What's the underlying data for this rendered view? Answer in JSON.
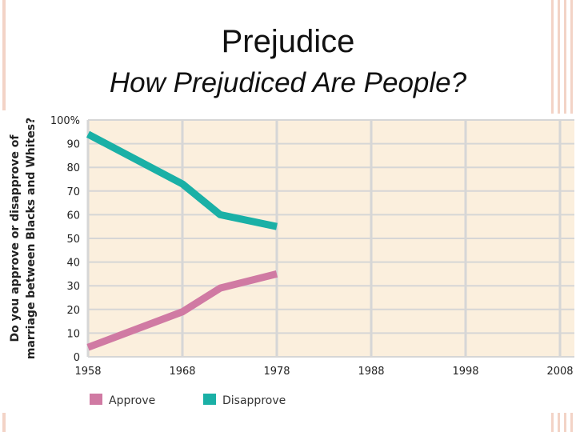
{
  "slide": {
    "title": "Prejudice",
    "subtitle": "How Prejudiced Are People?"
  },
  "chart_data": {
    "type": "line",
    "title": "",
    "xlabel": "",
    "ylabel_line1": "Do you approve or disapprove of",
    "ylabel_line2": "marriage between Blacks and Whites?",
    "x_ticks": [
      "1958",
      "1968",
      "1978",
      "1988",
      "1998",
      "2008"
    ],
    "y_ticks": [
      "0",
      "10",
      "20",
      "30",
      "40",
      "50",
      "60",
      "70",
      "80",
      "90",
      "100%"
    ],
    "xlim": [
      1958,
      2008
    ],
    "ylim": [
      0,
      100
    ],
    "grid": true,
    "legend_position": "bottom-left",
    "plot_background": "#fbefdd",
    "grid_color": "#d6d6d6",
    "series": [
      {
        "name": "Approve",
        "color": "#d07aa3",
        "x": [
          1958,
          1968,
          1972,
          1978
        ],
        "y": [
          4,
          19,
          29,
          35
        ]
      },
      {
        "name": "Disapprove",
        "color": "#1ab0a6",
        "x": [
          1958,
          1968,
          1972,
          1978
        ],
        "y": [
          94,
          73,
          60,
          55
        ]
      }
    ]
  }
}
